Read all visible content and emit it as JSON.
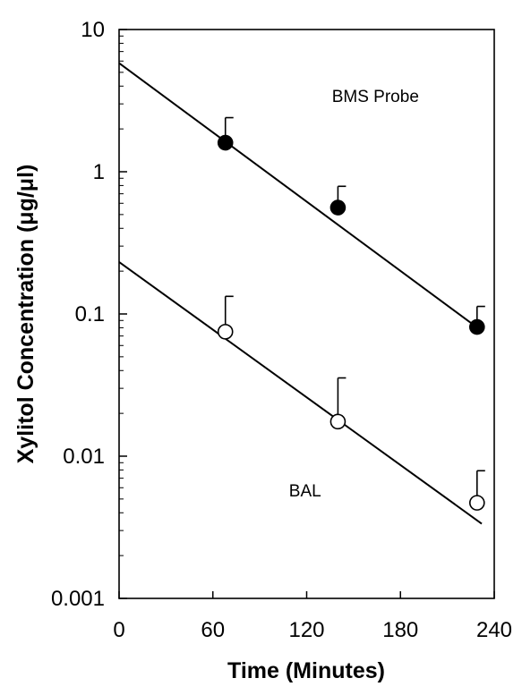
{
  "chart_data": {
    "type": "scatter",
    "title": "",
    "xlabel": "Time (Minutes)",
    "ylabel": "Xylitol Concentration (μg/μl)",
    "xlim": [
      0,
      240
    ],
    "ylim": [
      0.001,
      10
    ],
    "yscale": "log",
    "x_ticks": [
      0,
      60,
      120,
      180,
      240
    ],
    "x_tick_labels": [
      "0",
      "60",
      "120",
      "180",
      "240"
    ],
    "y_ticks": [
      0.001,
      0.01,
      0.1,
      1,
      10
    ],
    "y_tick_labels": [
      "0.001",
      "0.01",
      "0.1",
      "1",
      "10"
    ],
    "grid": false,
    "legend": "none",
    "series": [
      {
        "marker": "filled-circle",
        "color": "#000000",
        "x": [
          68,
          140,
          229
        ],
        "y": [
          1.6,
          0.56,
          0.081
        ],
        "error_upper": [
          2.4,
          0.79,
          0.113
        ],
        "fit_line": {
          "x": [
            0,
            232
          ],
          "y": [
            5.8,
            0.076
          ]
        }
      },
      {
        "marker": "open-circle",
        "color": "#000000",
        "x": [
          68,
          140,
          229
        ],
        "y": [
          0.075,
          0.0175,
          0.0047
        ],
        "error_upper": [
          0.133,
          0.0355,
          0.0079
        ],
        "fit_line": {
          "x": [
            0,
            232
          ],
          "y": [
            0.232,
            0.00335
          ]
        }
      }
    ],
    "annotations": [
      {
        "text": "BMS Probe",
        "x": 164,
        "y": 3.1
      },
      {
        "text": "BAL",
        "x": 119,
        "y": 0.0052
      }
    ]
  }
}
